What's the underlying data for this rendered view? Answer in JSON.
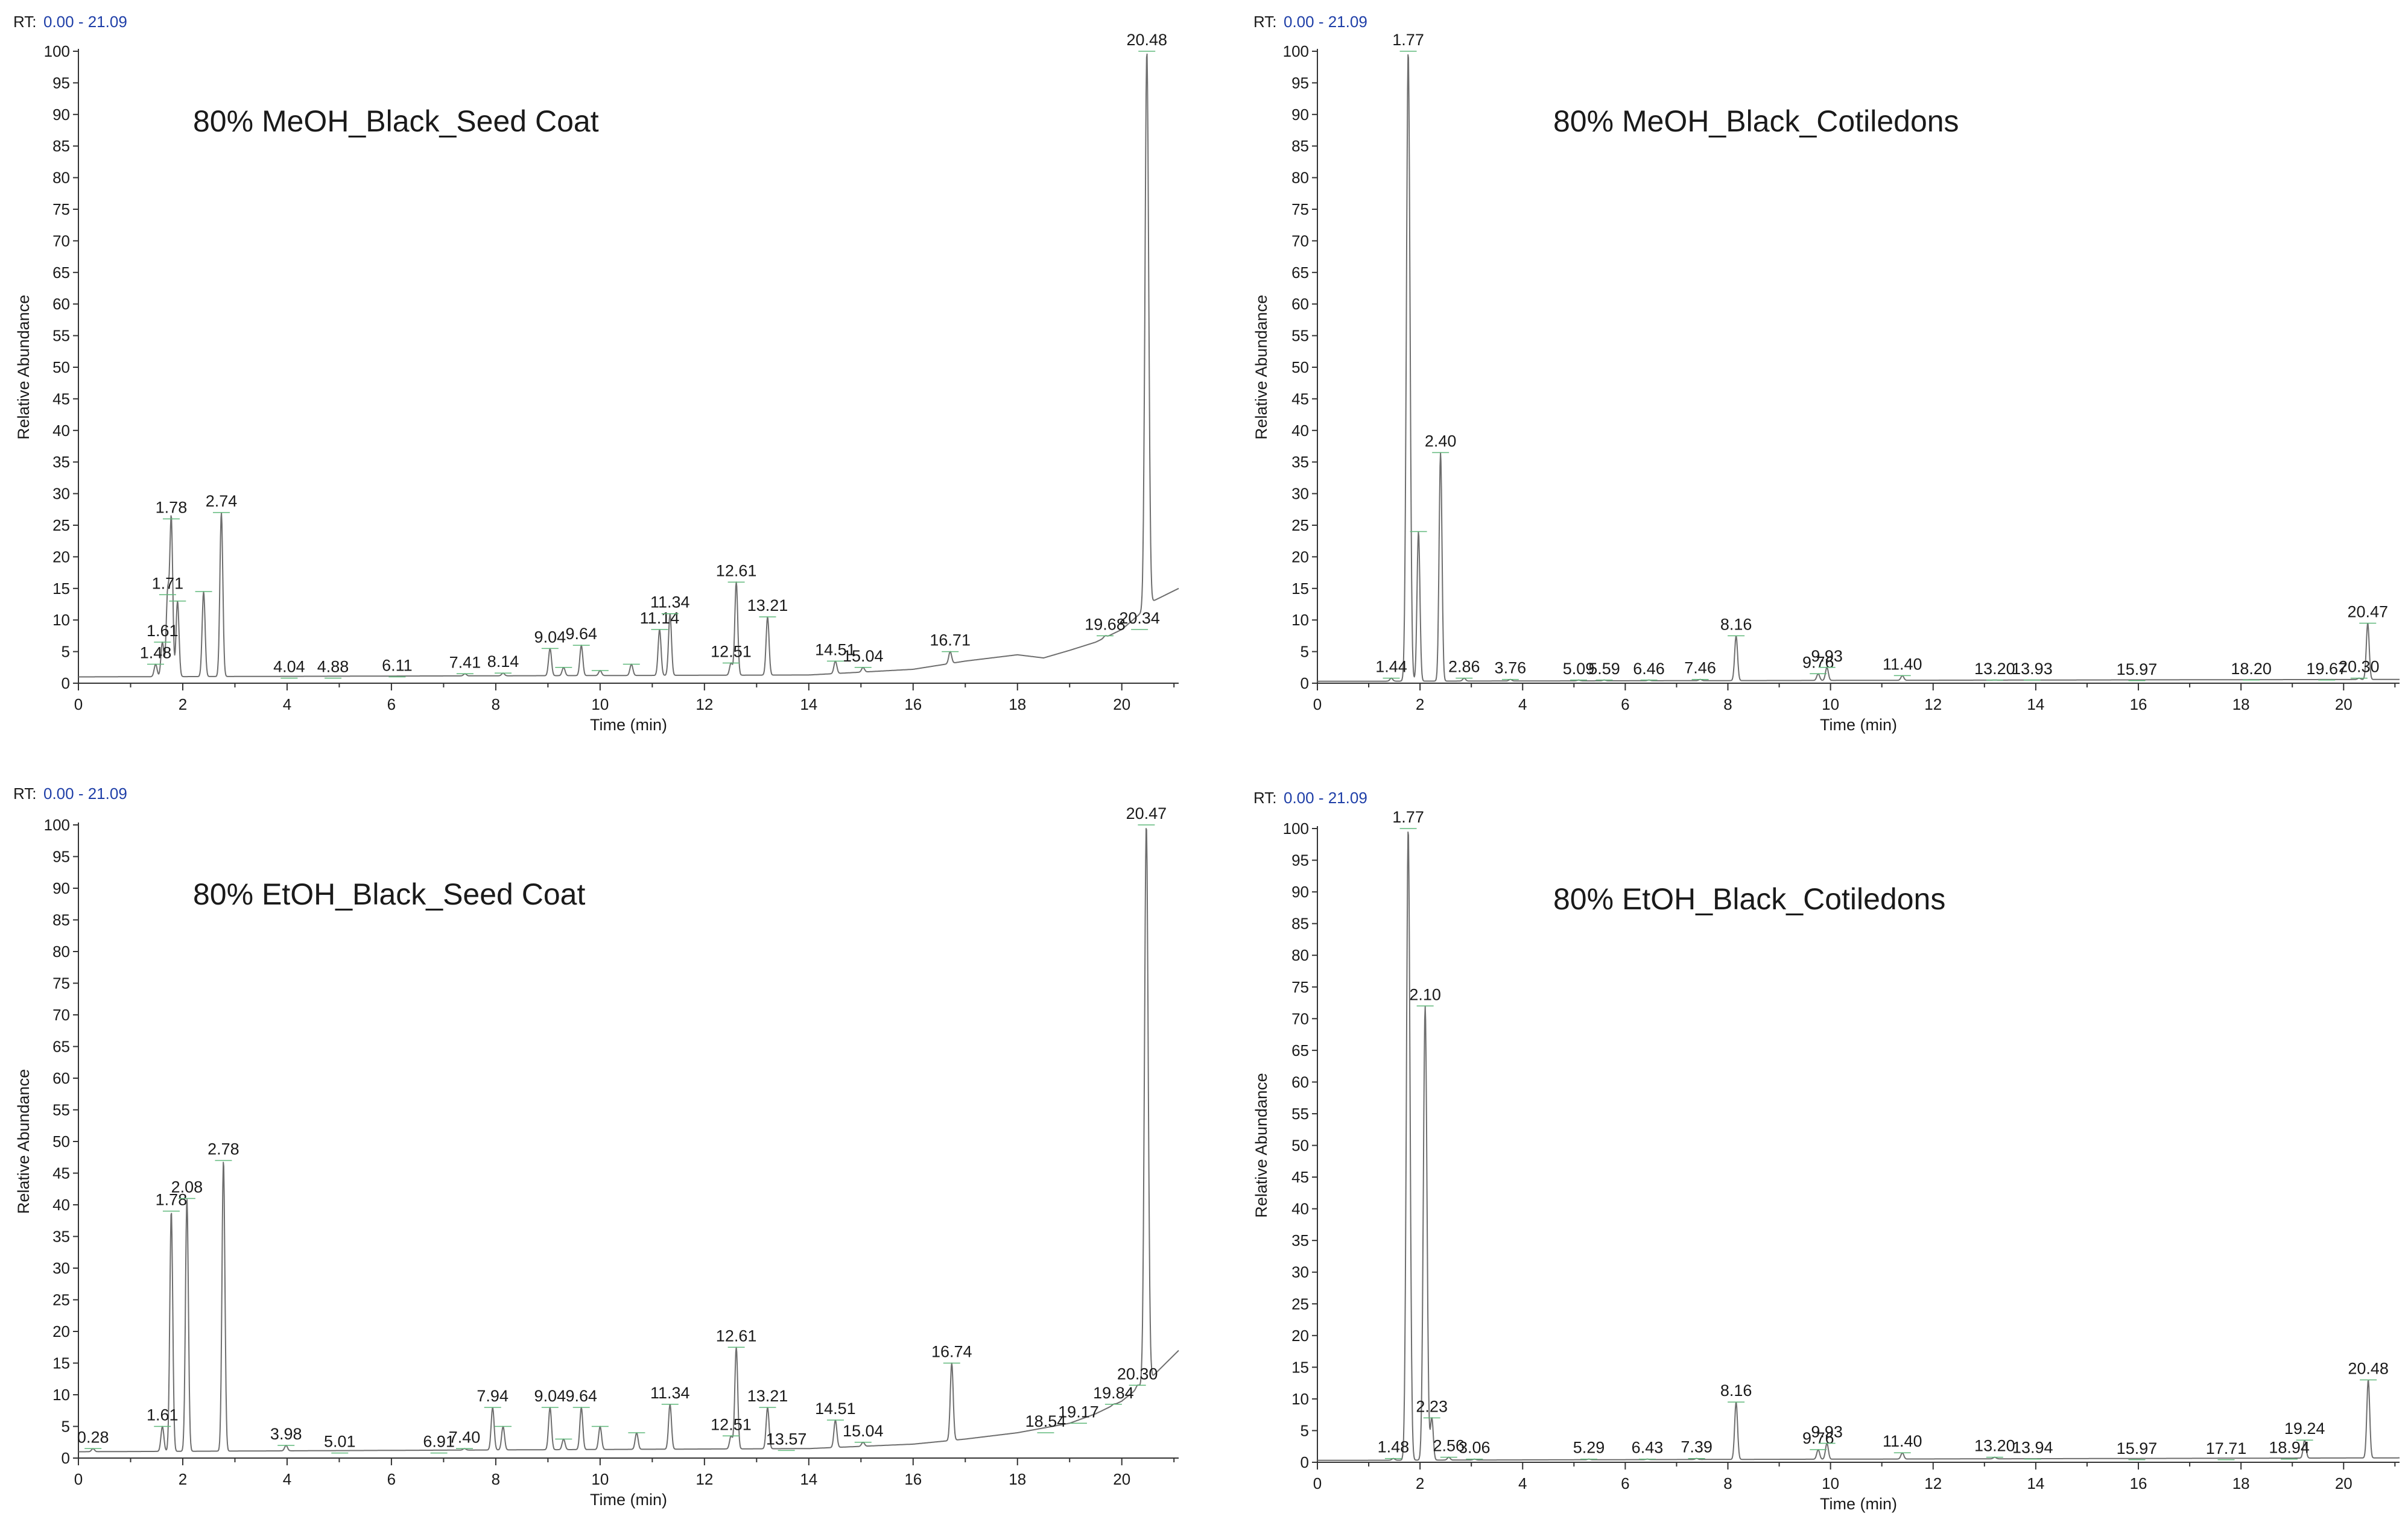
{
  "figure": {
    "rt_label": "RT:",
    "rt_range_text": "0.00 - 21.09",
    "colors": {
      "trace": "#6e6e6e",
      "axis": "#333333",
      "rt_value": "#1f3fa8",
      "baseline_marker": "#5fb87a",
      "text": "#1a1a1a"
    }
  },
  "chart_data": [
    {
      "type": "line",
      "title": "80% MeOH_Black_Seed Coat",
      "xlabel": "Time (min)",
      "ylabel": "Relative Abundance",
      "xlim": [
        0,
        21.09
      ],
      "ylim": [
        0,
        100
      ],
      "xticks": [
        0,
        2,
        4,
        6,
        8,
        10,
        12,
        14,
        16,
        18,
        20
      ],
      "yticks": [
        0,
        5,
        10,
        15,
        20,
        25,
        30,
        35,
        40,
        45,
        50,
        55,
        60,
        65,
        70,
        75,
        80,
        85,
        90,
        95,
        100
      ],
      "tail_end_y": 15,
      "baseline": [
        [
          0,
          1.0
        ],
        [
          14,
          1.3
        ],
        [
          16,
          2.2
        ],
        [
          17,
          3.5
        ],
        [
          18,
          4.5
        ],
        [
          18.5,
          4.0
        ],
        [
          19,
          5.2
        ],
        [
          19.5,
          6.5
        ],
        [
          20,
          8.5
        ],
        [
          20.35,
          11.0
        ],
        [
          20.6,
          13.0
        ],
        [
          21.09,
          15.0
        ]
      ],
      "peaks": [
        {
          "rt": 1.48,
          "h": 3,
          "label": "1.48"
        },
        {
          "rt": 1.61,
          "h": 6.5,
          "label": "1.61"
        },
        {
          "rt": 1.71,
          "h": 14,
          "label": "1.71"
        },
        {
          "rt": 1.78,
          "h": 26,
          "label": "1.78"
        },
        {
          "rt": 1.9,
          "h": 13,
          "label": ""
        },
        {
          "rt": 2.4,
          "h": 14.5,
          "label": ""
        },
        {
          "rt": 2.74,
          "h": 27,
          "label": "2.74"
        },
        {
          "rt": 4.04,
          "h": 0.8,
          "label": "4.04"
        },
        {
          "rt": 4.88,
          "h": 0.8,
          "label": "4.88"
        },
        {
          "rt": 6.11,
          "h": 1.0,
          "label": "6.11"
        },
        {
          "rt": 7.41,
          "h": 1.5,
          "label": "7.41"
        },
        {
          "rt": 8.14,
          "h": 1.6,
          "label": "8.14"
        },
        {
          "rt": 9.04,
          "h": 5.5,
          "label": "9.04"
        },
        {
          "rt": 9.3,
          "h": 2.5,
          "label": ""
        },
        {
          "rt": 9.64,
          "h": 6,
          "label": "9.64"
        },
        {
          "rt": 10.0,
          "h": 2.0,
          "label": ""
        },
        {
          "rt": 10.6,
          "h": 3.0,
          "label": ""
        },
        {
          "rt": 11.14,
          "h": 8.5,
          "label": "11.14"
        },
        {
          "rt": 11.34,
          "h": 11,
          "label": "11.34"
        },
        {
          "rt": 12.51,
          "h": 3.2,
          "label": "12.51"
        },
        {
          "rt": 12.61,
          "h": 16,
          "label": "12.61"
        },
        {
          "rt": 13.21,
          "h": 10.5,
          "label": "13.21"
        },
        {
          "rt": 14.51,
          "h": 3.5,
          "label": "14.51"
        },
        {
          "rt": 15.04,
          "h": 2.5,
          "label": "15.04"
        },
        {
          "rt": 16.71,
          "h": 5,
          "label": "16.71"
        },
        {
          "rt": 19.68,
          "h": 7.5,
          "label": "19.68"
        },
        {
          "rt": 20.34,
          "h": 8.5,
          "label": "20.34"
        },
        {
          "rt": 20.48,
          "h": 100,
          "label": "20.48"
        }
      ]
    },
    {
      "type": "line",
      "title": "80% MeOH_Black_Cotiledons",
      "xlabel": "Time (min)",
      "ylabel": "Relative Abundance",
      "xlim": [
        0,
        21.09
      ],
      "ylim": [
        0,
        100
      ],
      "xticks": [
        0,
        2,
        4,
        6,
        8,
        10,
        12,
        14,
        16,
        18,
        20
      ],
      "yticks": [
        0,
        5,
        10,
        15,
        20,
        25,
        30,
        35,
        40,
        45,
        50,
        55,
        60,
        65,
        70,
        75,
        80,
        85,
        90,
        95,
        100
      ],
      "tail_end_y": 1.0,
      "baseline": [
        [
          0,
          0.3
        ],
        [
          21.09,
          0.6
        ]
      ],
      "peaks": [
        {
          "rt": 1.44,
          "h": 0.8,
          "label": "1.44"
        },
        {
          "rt": 1.77,
          "h": 100,
          "label": "1.77"
        },
        {
          "rt": 1.97,
          "h": 24,
          "label": ""
        },
        {
          "rt": 2.4,
          "h": 36.5,
          "label": "2.40"
        },
        {
          "rt": 2.86,
          "h": 0.8,
          "label": "2.86"
        },
        {
          "rt": 3.76,
          "h": 0.6,
          "label": "3.76"
        },
        {
          "rt": 5.09,
          "h": 0.5,
          "label": "5.09"
        },
        {
          "rt": 5.59,
          "h": 0.5,
          "label": "5.59"
        },
        {
          "rt": 6.46,
          "h": 0.5,
          "label": "6.46"
        },
        {
          "rt": 7.46,
          "h": 0.6,
          "label": "7.46"
        },
        {
          "rt": 8.16,
          "h": 7.5,
          "label": "8.16"
        },
        {
          "rt": 9.76,
          "h": 1.5,
          "label": "9.76"
        },
        {
          "rt": 9.93,
          "h": 2.5,
          "label": "9.93"
        },
        {
          "rt": 11.4,
          "h": 1.2,
          "label": "11.40"
        },
        {
          "rt": 13.2,
          "h": 0.5,
          "label": "13.20"
        },
        {
          "rt": 13.93,
          "h": 0.5,
          "label": "13.93"
        },
        {
          "rt": 15.97,
          "h": 0.4,
          "label": "15.97"
        },
        {
          "rt": 18.2,
          "h": 0.5,
          "label": "18.20"
        },
        {
          "rt": 19.67,
          "h": 0.5,
          "label": "19.67"
        },
        {
          "rt": 20.3,
          "h": 0.8,
          "label": "20.30"
        },
        {
          "rt": 20.47,
          "h": 9.5,
          "label": "20.47"
        }
      ]
    },
    {
      "type": "line",
      "title": "80% EtOH_Black_Seed Coat",
      "xlabel": "Time (min)",
      "ylabel": "Relative Abundance",
      "xlim": [
        0,
        21.09
      ],
      "ylim": [
        0,
        100
      ],
      "xticks": [
        0,
        2,
        4,
        6,
        8,
        10,
        12,
        14,
        16,
        18,
        20
      ],
      "yticks": [
        0,
        5,
        10,
        15,
        20,
        25,
        30,
        35,
        40,
        45,
        50,
        55,
        60,
        65,
        70,
        75,
        80,
        85,
        90,
        95,
        100
      ],
      "tail_end_y": 17,
      "baseline": [
        [
          0,
          1.0
        ],
        [
          14,
          1.5
        ],
        [
          16,
          2.2
        ],
        [
          17,
          3.0
        ],
        [
          18,
          4.0
        ],
        [
          19,
          5.5
        ],
        [
          19.5,
          7.0
        ],
        [
          20,
          9.0
        ],
        [
          20.3,
          11.0
        ],
        [
          20.6,
          13.0
        ],
        [
          21.09,
          17.0
        ]
      ],
      "peaks": [
        {
          "rt": 0.28,
          "h": 1.5,
          "label": "0.28"
        },
        {
          "rt": 1.61,
          "h": 5,
          "label": "1.61"
        },
        {
          "rt": 1.78,
          "h": 39,
          "label": "1.78"
        },
        {
          "rt": 2.08,
          "h": 41,
          "label": "2.08"
        },
        {
          "rt": 2.78,
          "h": 47,
          "label": "2.78"
        },
        {
          "rt": 3.98,
          "h": 2,
          "label": "3.98"
        },
        {
          "rt": 5.01,
          "h": 0.8,
          "label": "5.01"
        },
        {
          "rt": 6.91,
          "h": 0.8,
          "label": "6.91"
        },
        {
          "rt": 7.4,
          "h": 1.5,
          "label": "7.40"
        },
        {
          "rt": 7.94,
          "h": 8,
          "label": "7.94"
        },
        {
          "rt": 8.14,
          "h": 5,
          "label": ""
        },
        {
          "rt": 9.04,
          "h": 8,
          "label": "9.04"
        },
        {
          "rt": 9.3,
          "h": 3,
          "label": ""
        },
        {
          "rt": 9.64,
          "h": 8,
          "label": "9.64"
        },
        {
          "rt": 10.0,
          "h": 5,
          "label": ""
        },
        {
          "rt": 10.7,
          "h": 4,
          "label": ""
        },
        {
          "rt": 11.34,
          "h": 8.5,
          "label": "11.34"
        },
        {
          "rt": 12.51,
          "h": 3.5,
          "label": "12.51"
        },
        {
          "rt": 12.61,
          "h": 17.5,
          "label": "12.61"
        },
        {
          "rt": 13.21,
          "h": 8,
          "label": "13.21"
        },
        {
          "rt": 13.57,
          "h": 1.2,
          "label": "13.57"
        },
        {
          "rt": 14.51,
          "h": 6,
          "label": "14.51"
        },
        {
          "rt": 15.04,
          "h": 2.5,
          "label": "15.04"
        },
        {
          "rt": 16.74,
          "h": 15,
          "label": "16.74"
        },
        {
          "rt": 18.54,
          "h": 4,
          "label": "18.54"
        },
        {
          "rt": 19.17,
          "h": 5.5,
          "label": "19.17"
        },
        {
          "rt": 19.84,
          "h": 8.5,
          "label": "19.84"
        },
        {
          "rt": 20.3,
          "h": 11.5,
          "label": "20.30"
        },
        {
          "rt": 20.47,
          "h": 100,
          "label": "20.47"
        }
      ]
    },
    {
      "type": "line",
      "title": "80% EtOH_Black_Cotiledons",
      "xlabel": "Time (min)",
      "ylabel": "Relative Abundance",
      "xlim": [
        0,
        21.09
      ],
      "ylim": [
        0,
        100
      ],
      "xticks": [
        0,
        2,
        4,
        6,
        8,
        10,
        12,
        14,
        16,
        18,
        20
      ],
      "yticks": [
        0,
        5,
        10,
        15,
        20,
        25,
        30,
        35,
        40,
        45,
        50,
        55,
        60,
        65,
        70,
        75,
        80,
        85,
        90,
        95,
        100
      ],
      "tail_end_y": 1.0,
      "baseline": [
        [
          0,
          0.3
        ],
        [
          21.09,
          0.7
        ]
      ],
      "peaks": [
        {
          "rt": 1.48,
          "h": 0.6,
          "label": "1.48"
        },
        {
          "rt": 1.77,
          "h": 100,
          "label": "1.77"
        },
        {
          "rt": 2.1,
          "h": 72,
          "label": "2.10"
        },
        {
          "rt": 2.23,
          "h": 7,
          "label": "2.23"
        },
        {
          "rt": 2.56,
          "h": 0.8,
          "label": "2.56"
        },
        {
          "rt": 3.06,
          "h": 0.5,
          "label": "3.06"
        },
        {
          "rt": 5.29,
          "h": 0.5,
          "label": "5.29"
        },
        {
          "rt": 6.43,
          "h": 0.5,
          "label": "6.43"
        },
        {
          "rt": 7.39,
          "h": 0.6,
          "label": "7.39"
        },
        {
          "rt": 8.16,
          "h": 9.5,
          "label": "8.16"
        },
        {
          "rt": 9.76,
          "h": 2,
          "label": "9.76"
        },
        {
          "rt": 9.93,
          "h": 3,
          "label": "9.93"
        },
        {
          "rt": 11.4,
          "h": 1.5,
          "label": "11.40"
        },
        {
          "rt": 13.2,
          "h": 0.8,
          "label": "13.20"
        },
        {
          "rt": 13.94,
          "h": 0.5,
          "label": "13.94"
        },
        {
          "rt": 15.97,
          "h": 0.4,
          "label": "15.97"
        },
        {
          "rt": 17.71,
          "h": 0.4,
          "label": "17.71"
        },
        {
          "rt": 18.94,
          "h": 0.5,
          "label": "18.94"
        },
        {
          "rt": 19.24,
          "h": 3.5,
          "label": "19.24"
        },
        {
          "rt": 20.48,
          "h": 13,
          "label": "20.48"
        }
      ]
    }
  ]
}
